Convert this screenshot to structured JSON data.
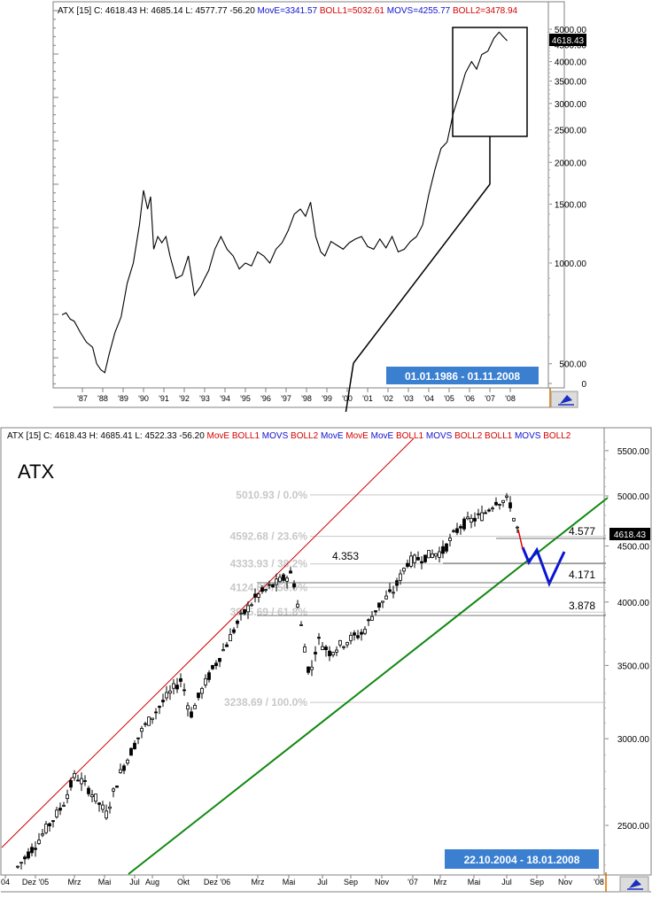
{
  "colors": {
    "price_line": "#000000",
    "channel_upper": "#cc0000",
    "channel_lower": "#118811",
    "projection": "#0a14d8",
    "fib_text": "#c8c8c8",
    "badge_bg": "#3a7fd0",
    "badge_text": "#ffffff",
    "header_red": "#d40000",
    "header_blue": "#1010d0"
  },
  "top_panel": {
    "header": {
      "prefix": "ATX [15] C: 4618.43 H: 4685.14 L: 4577.77 -56.20",
      "items": [
        {
          "text": "MovE=3341.57",
          "color": "#1010d0"
        },
        {
          "text": "BOLL1=5032.61",
          "color": "#d40000"
        },
        {
          "text": "MOVS=4255.77",
          "color": "#1010d0"
        },
        {
          "text": "BOLL2=3478.94",
          "color": "#d40000"
        }
      ]
    },
    "price_badge": "4618.43",
    "date_range": "01.01.1986 - 01.11.2008",
    "icon": "chart-tool-icon"
  },
  "bottom_panel": {
    "header": {
      "prefix": "ATX [15] C: 4618.43 H: 4685.41 L: 4522.33 -56.20",
      "items": [
        {
          "text": "MovE",
          "color": "#d40000"
        },
        {
          "text": "BOLL1",
          "color": "#d40000"
        },
        {
          "text": "MOVS",
          "color": "#1010d0"
        },
        {
          "text": "BOLL2",
          "color": "#d40000"
        },
        {
          "text": "MovE",
          "color": "#1010d0"
        },
        {
          "text": "MovE",
          "color": "#d40000"
        },
        {
          "text": "MovE",
          "color": "#1010d0"
        },
        {
          "text": "BOLL1",
          "color": "#d40000"
        },
        {
          "text": "MOVS",
          "color": "#1010d0"
        },
        {
          "text": "BOLL2",
          "color": "#d40000"
        },
        {
          "text": "BOLL1",
          "color": "#d40000"
        },
        {
          "text": "MOVS",
          "color": "#1010d0"
        },
        {
          "text": "BOLL2",
          "color": "#d40000"
        }
      ]
    },
    "title": "ATX",
    "price_badge": "4618.43",
    "date_range": "22.10.2004 - 18.01.2008",
    "icon": "chart-tool-icon",
    "fib_labels": [
      "5010.93 / 0.0%",
      "4592.68 / 23.6%",
      "4333.93 / 38.2%",
      "4124.80 / 50.0%",
      "3915.69 / 61.8%",
      "3238.69 / 100.0%"
    ],
    "level_labels": [
      "4.577",
      "4.353",
      "4.171",
      "3.878"
    ]
  },
  "chart_data": [
    {
      "type": "line",
      "title": "",
      "scale": "log",
      "x_ticks": [
        "'87",
        "'88",
        "'89",
        "'90",
        "'91",
        "'92",
        "'93",
        "'94",
        "'95",
        "'96",
        "'97",
        "'98",
        "'99",
        "'00",
        "'01",
        "'02",
        "'03",
        "'04",
        "'05",
        "'06",
        "'07",
        "'08"
      ],
      "y_ticks": [
        0,
        500,
        1000,
        1500,
        2000,
        2500,
        3000,
        3500,
        4000,
        4500,
        5000
      ],
      "x": [
        1986.0,
        1986.2,
        1986.4,
        1986.6,
        1986.9,
        1987.2,
        1987.5,
        1987.7,
        1987.9,
        1988.1,
        1988.3,
        1988.6,
        1988.9,
        1989.2,
        1989.5,
        1989.8,
        1990.0,
        1990.2,
        1990.35,
        1990.5,
        1990.7,
        1990.9,
        1991.1,
        1991.3,
        1991.6,
        1991.9,
        1992.2,
        1992.5,
        1992.8,
        1993.0,
        1993.2,
        1993.5,
        1993.8,
        1994.1,
        1994.4,
        1994.7,
        1995.0,
        1995.3,
        1995.6,
        1995.9,
        1996.2,
        1996.5,
        1996.8,
        1997.1,
        1997.4,
        1997.7,
        1997.95,
        1998.2,
        1998.45,
        1998.7,
        1998.9,
        1999.2,
        1999.5,
        1999.8,
        2000.1,
        2000.4,
        2000.7,
        2001.0,
        2001.3,
        2001.6,
        2001.9,
        2002.2,
        2002.5,
        2002.8,
        2003.1,
        2003.4,
        2003.7,
        2004.0,
        2004.3,
        2004.6,
        2004.9,
        2005.2,
        2005.5,
        2005.8,
        2006.1,
        2006.35,
        2006.6,
        2006.9,
        2007.2,
        2007.45,
        2007.65,
        2007.85
      ],
      "values": [
        700,
        710,
        680,
        670,
        620,
        580,
        560,
        500,
        480,
        470,
        530,
        620,
        690,
        870,
        1000,
        1300,
        1650,
        1450,
        1580,
        1100,
        1200,
        1150,
        1200,
        1050,
        900,
        920,
        1050,
        800,
        850,
        900,
        950,
        1100,
        1200,
        1100,
        1050,
        960,
        1000,
        980,
        1080,
        1050,
        1000,
        1100,
        1150,
        1250,
        1400,
        1450,
        1380,
        1520,
        1200,
        1080,
        1050,
        1160,
        1130,
        1100,
        1150,
        1180,
        1200,
        1120,
        1100,
        1180,
        1110,
        1200,
        1080,
        1100,
        1160,
        1200,
        1300,
        1600,
        1900,
        2200,
        2300,
        2800,
        3200,
        3700,
        4000,
        3800,
        4200,
        4300,
        4700,
        4900,
        4750,
        4618
      ]
    },
    {
      "type": "candlestick",
      "title": "ATX",
      "scale": "log",
      "x_ticks": [
        "04",
        "Dez '05",
        "Mrz",
        "Mai",
        "Jul",
        "Aug",
        "Okt",
        "Dez '06",
        "Mrz",
        "Mai",
        "Jul",
        "Sep",
        "Nov",
        "'07",
        "Mrz",
        "Mai",
        "Jul",
        "Sep",
        "Nov",
        "'08"
      ],
      "y_ticks": [
        2500,
        3000,
        3500,
        4000,
        4500,
        5000,
        5500
      ],
      "x": [
        2004.8,
        2005.0,
        2005.2,
        2005.4,
        2005.6,
        2005.8,
        2006.0,
        2006.2,
        2006.3,
        2006.4,
        2006.45,
        2006.6,
        2006.8,
        2007.0,
        2007.2,
        2007.4,
        2007.5,
        2007.55,
        2007.6
      ],
      "values": [
        2250,
        2400,
        2650,
        2800,
        3000,
        3300,
        3700,
        4000,
        4300,
        3800,
        3350,
        3700,
        3850,
        4300,
        4500,
        4750,
        4950,
        4750,
        4618
      ],
      "fibonacci": [
        {
          "price": 5010.93,
          "pct": 0.0
        },
        {
          "price": 4592.68,
          "pct": 23.6
        },
        {
          "price": 4333.93,
          "pct": 38.2
        },
        {
          "price": 4124.8,
          "pct": 50.0
        },
        {
          "price": 3915.69,
          "pct": 61.8
        },
        {
          "price": 3238.69,
          "pct": 100.0
        }
      ],
      "levels": [
        4577,
        4353,
        4171,
        3878
      ],
      "projection": [
        4618,
        4380,
        4450,
        4200,
        4420
      ]
    }
  ]
}
